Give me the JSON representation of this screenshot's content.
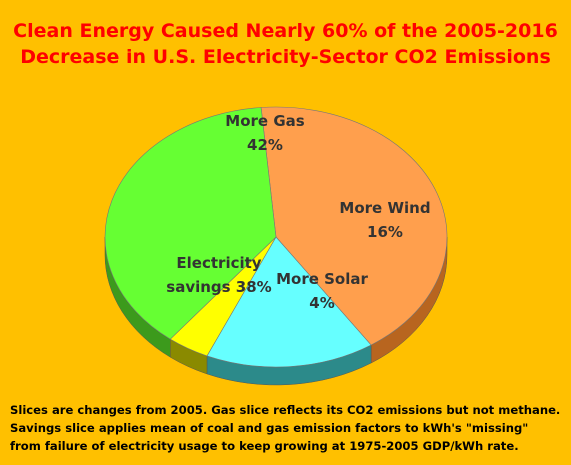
{
  "chart_data": {
    "type": "pie",
    "title_lines": [
      "Clean Energy Caused Nearly 60% of the 2005-2016",
      "Decrease in U.S. Electricity-Sector CO2 Emissions"
    ],
    "slices": [
      {
        "label_lines": [
          "More Gas",
          "42%"
        ],
        "value": 42,
        "color": "#FF9F4D",
        "side_color": "#B8651F"
      },
      {
        "label_lines": [
          "More Wind",
          "16%"
        ],
        "value": 16,
        "color": "#66FFFF",
        "side_color": "#2C8A8A"
      },
      {
        "label_lines": [
          "More Solar",
          "4%"
        ],
        "value": 4,
        "color": "#FFFF00",
        "side_color": "#8A8A00"
      },
      {
        "label_lines": [
          "Electricity",
          "savings 38%"
        ],
        "value": 38,
        "color": "#66FF33",
        "side_color": "#3C9A1C"
      }
    ],
    "style": "3d"
  },
  "notes": [
    "Slices are changes from 2005. Gas slice reflects its CO2 emissions but not methane.",
    "Savings slice applies mean of coal and gas emission factors to kWh's \"missing\"",
    "from failure of electricity usage to keep growing at 1975-2005 GDP/kWh rate."
  ],
  "colors": {
    "background": "#FFC000",
    "title": "#FF0000"
  }
}
